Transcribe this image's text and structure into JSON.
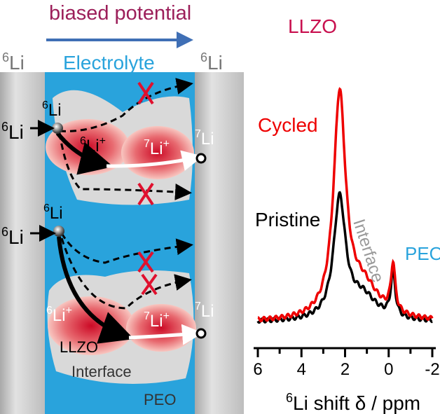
{
  "diagram": {
    "top_label": "biased potential",
    "electrode_left": {
      "sup": "6",
      "text": "Li"
    },
    "electrode_right": {
      "sup": "6",
      "text": "Li"
    },
    "electrolyte_label": "Electrolyte",
    "upper": {
      "incoming": {
        "sup": "6",
        "text": "Li"
      },
      "source": {
        "sup": "6",
        "text": "Li"
      },
      "ion1": {
        "sup": "6",
        "text": "Li",
        "charge": "+"
      },
      "ion2": {
        "sup": "7",
        "text": "Li",
        "charge": "+"
      },
      "target": {
        "sup": "7",
        "text": "Li"
      }
    },
    "lower": {
      "incoming": {
        "sup": "6",
        "text": "Li"
      },
      "source": {
        "sup": "6",
        "text": "Li"
      },
      "ion1": {
        "sup": "6",
        "text": "Li",
        "charge": "+"
      },
      "ion2": {
        "sup": "7",
        "text": "Li",
        "charge": "+"
      },
      "target": {
        "sup": "7",
        "text": "Li"
      },
      "llzo": "LLZO",
      "interface": "Interface",
      "peo": "PEO"
    },
    "colors": {
      "electrolyte": "#29a3dc",
      "electrode": "#c8c8c8",
      "blocked": "#e0102e",
      "title": "#9c1f5a",
      "arrow": "#3f6fb5"
    }
  },
  "chart_data": {
    "type": "line",
    "xlabel_sup": "6",
    "xlabel": "Li shift δ / ppm",
    "xlim": [
      6,
      -2
    ],
    "xticks": [
      "6",
      "4",
      "2",
      "0",
      "-2"
    ],
    "xtick_values": [
      6,
      4,
      2,
      0,
      -2
    ],
    "annotations": {
      "llzo": "LLZO",
      "interface": "Interface",
      "peo": "PEO"
    },
    "series": [
      {
        "name": "Cycled",
        "color": "#ee0000",
        "peaks": [
          {
            "center": 2.25,
            "height": 0.92,
            "hwhm": 0.33
          },
          {
            "center": 1.2,
            "height": 0.14,
            "hwhm": 0.9
          },
          {
            "center": -0.2,
            "height": 0.2,
            "hwhm": 0.12
          }
        ]
      },
      {
        "name": "Pristine",
        "color": "#000000",
        "peaks": [
          {
            "center": 2.25,
            "height": 0.5,
            "hwhm": 0.33
          },
          {
            "center": 1.2,
            "height": 0.1,
            "hwhm": 0.8
          },
          {
            "center": -0.2,
            "height": 0.19,
            "hwhm": 0.12
          }
        ]
      }
    ]
  }
}
